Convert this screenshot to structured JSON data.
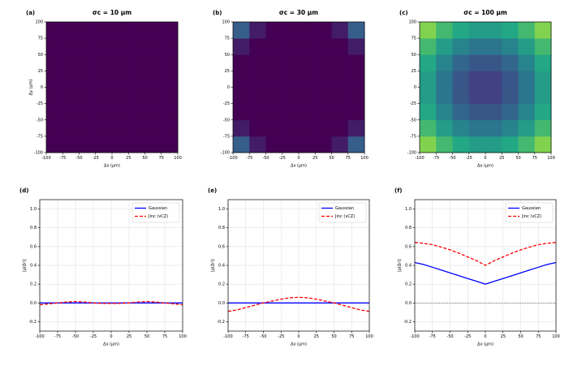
{
  "chart_data": [
    {
      "type": "heatmap",
      "panel_label": "(a)",
      "title": "σc = 10 μm",
      "xlabel": "Δx (μm)",
      "ylabel": "Δy (μm)",
      "xlim": [
        -100,
        100
      ],
      "ylim": [
        -100,
        100
      ],
      "xticks": [
        -100,
        -75,
        -50,
        -25,
        0,
        25,
        50,
        75,
        100
      ],
      "yticks": [
        -100,
        -75,
        -50,
        -25,
        0,
        25,
        50,
        75,
        100
      ],
      "colormap": "viridis",
      "clim": [
        0,
        1
      ],
      "x": [
        -87.5,
        -62.5,
        -37.5,
        -12.5,
        12.5,
        37.5,
        62.5,
        87.5
      ],
      "y": [
        -87.5,
        -62.5,
        -37.5,
        -12.5,
        12.5,
        37.5,
        62.5,
        87.5
      ],
      "z": [
        [
          0,
          0,
          0,
          0,
          0,
          0,
          0,
          0
        ],
        [
          0,
          0,
          0,
          0,
          0,
          0,
          0,
          0
        ],
        [
          0,
          0,
          0,
          0,
          0,
          0,
          0,
          0
        ],
        [
          0,
          0,
          0,
          0,
          0,
          0,
          0,
          0
        ],
        [
          0,
          0,
          0,
          0,
          0,
          0,
          0,
          0
        ],
        [
          0,
          0,
          0,
          0,
          0,
          0,
          0,
          0
        ],
        [
          0,
          0,
          0,
          0,
          0,
          0,
          0,
          0
        ],
        [
          0,
          0,
          0,
          0,
          0,
          0,
          0,
          0
        ]
      ]
    },
    {
      "type": "heatmap",
      "panel_label": "(b)",
      "title": "σc = 30 μm",
      "xlabel": "Δx (μm)",
      "xlim": [
        -100,
        100
      ],
      "ylim": [
        -100,
        100
      ],
      "xticks": [
        -100,
        -75,
        -50,
        -25,
        0,
        25,
        50,
        75,
        100
      ],
      "yticks": [
        -100,
        -75,
        -50,
        -25,
        0,
        25,
        50,
        75,
        100
      ],
      "colormap": "viridis",
      "clim": [
        0,
        1
      ],
      "x": [
        -87.5,
        -62.5,
        -37.5,
        -12.5,
        12.5,
        37.5,
        62.5,
        87.5
      ],
      "y": [
        -87.5,
        -62.5,
        -37.5,
        -12.5,
        12.5,
        37.5,
        62.5,
        87.5
      ],
      "z": [
        [
          0.3,
          0.08,
          0,
          0,
          0,
          0,
          0.08,
          0.3
        ],
        [
          0.08,
          0,
          0,
          0,
          0,
          0,
          0,
          0.08
        ],
        [
          0,
          0,
          0,
          0,
          0,
          0,
          0,
          0
        ],
        [
          0,
          0,
          0,
          0,
          0,
          0,
          0,
          0
        ],
        [
          0,
          0,
          0,
          0,
          0,
          0,
          0,
          0
        ],
        [
          0,
          0,
          0,
          0,
          0,
          0,
          0,
          0
        ],
        [
          0.08,
          0,
          0,
          0,
          0,
          0,
          0,
          0.08
        ],
        [
          0.3,
          0.08,
          0,
          0,
          0,
          0,
          0.08,
          0.3
        ]
      ]
    },
    {
      "type": "heatmap",
      "panel_label": "(c)",
      "title": "σc = 100 μm",
      "xlabel": "Δx (μm)",
      "xlim": [
        -100,
        100
      ],
      "ylim": [
        -100,
        100
      ],
      "xticks": [
        -100,
        -75,
        -50,
        -25,
        0,
        25,
        50,
        75,
        100
      ],
      "yticks": [
        -100,
        -75,
        -50,
        -25,
        0,
        25,
        50,
        75,
        100
      ],
      "colormap": "viridis",
      "clim": [
        0,
        1
      ],
      "x": [
        -87.5,
        -62.5,
        -37.5,
        -12.5,
        12.5,
        37.5,
        62.5,
        87.5
      ],
      "y": [
        -87.5,
        -62.5,
        -37.5,
        -12.5,
        12.5,
        37.5,
        62.5,
        87.5
      ],
      "z": [
        [
          0.81,
          0.68,
          0.6,
          0.55,
          0.55,
          0.6,
          0.68,
          0.81
        ],
        [
          0.68,
          0.55,
          0.45,
          0.39,
          0.39,
          0.45,
          0.55,
          0.68
        ],
        [
          0.6,
          0.45,
          0.33,
          0.27,
          0.27,
          0.33,
          0.45,
          0.6
        ],
        [
          0.55,
          0.39,
          0.27,
          0.19,
          0.19,
          0.27,
          0.39,
          0.55
        ],
        [
          0.55,
          0.39,
          0.27,
          0.19,
          0.19,
          0.27,
          0.39,
          0.55
        ],
        [
          0.6,
          0.45,
          0.33,
          0.27,
          0.27,
          0.33,
          0.45,
          0.6
        ],
        [
          0.68,
          0.55,
          0.45,
          0.39,
          0.39,
          0.45,
          0.55,
          0.68
        ],
        [
          0.81,
          0.68,
          0.6,
          0.55,
          0.55,
          0.6,
          0.68,
          0.81
        ]
      ]
    },
    {
      "type": "line",
      "panel_label": "(d)",
      "xlabel": "Δx (μm)",
      "ylabel": "|μ(Δr)|",
      "grid": true,
      "legend": "upper right",
      "hline": 0,
      "xlim": [
        -100,
        100
      ],
      "ylim": [
        -0.3,
        1.1
      ],
      "xticks": [
        -100,
        -75,
        -50,
        -25,
        0,
        25,
        50,
        75,
        100
      ],
      "yticks": [
        -0.2,
        {
          "value": 0,
          "label": "0.0"
        },
        0.2,
        0.4,
        0.6,
        0.8,
        {
          "value": 1,
          "label": "1.0"
        }
      ],
      "x": [
        -100,
        -87.5,
        -75,
        -62.5,
        -50,
        -37.5,
        -25,
        -12.5,
        0,
        12.5,
        25,
        37.5,
        50,
        62.5,
        75,
        87.5,
        100
      ],
      "series": [
        {
          "name": "Gaussian",
          "color": "#0000ff",
          "linestyle": "solid",
          "values": [
            0,
            0,
            0,
            0,
            0,
            0,
            0,
            0,
            0,
            0,
            0,
            0,
            0,
            0,
            0,
            0,
            0
          ]
        },
        {
          "name": "Jinc (vCZ)",
          "color": "#ff0000",
          "linestyle": "dashed",
          "values": [
            -0.02,
            -0.01,
            0,
            0.01,
            0.015,
            0.01,
            0,
            -0.005,
            -0.005,
            -0.005,
            0,
            0.01,
            0.015,
            0.01,
            0,
            -0.01,
            -0.02
          ]
        }
      ]
    },
    {
      "type": "line",
      "panel_label": "(e)",
      "xlabel": "Δx (μm)",
      "ylabel": "|μ(Δr)|",
      "grid": true,
      "legend": "upper right",
      "hline": 0,
      "xlim": [
        -100,
        100
      ],
      "ylim": [
        -0.3,
        1.1
      ],
      "xticks": [
        -100,
        -75,
        -50,
        -25,
        0,
        25,
        50,
        75,
        100
      ],
      "yticks": [
        -0.2,
        {
          "value": 0,
          "label": "0.0"
        },
        0.2,
        0.4,
        0.6,
        0.8,
        {
          "value": 1,
          "label": "1.0"
        }
      ],
      "x": [
        -100,
        -87.5,
        -75,
        -62.5,
        -50,
        -37.5,
        -25,
        -12.5,
        0,
        12.5,
        25,
        37.5,
        50,
        62.5,
        75,
        87.5,
        100
      ],
      "series": [
        {
          "name": "Gaussian",
          "color": "#0000ff",
          "linestyle": "solid",
          "values": [
            0,
            0,
            0,
            0,
            0,
            0,
            0,
            0,
            0,
            0,
            0,
            0,
            0,
            0,
            0,
            0,
            0
          ]
        },
        {
          "name": "Jinc (vCZ)",
          "color": "#ff0000",
          "linestyle": "dashed",
          "values": [
            -0.09,
            -0.075,
            -0.05,
            -0.025,
            0,
            0.02,
            0.04,
            0.055,
            0.06,
            0.055,
            0.04,
            0.02,
            0,
            -0.025,
            -0.05,
            -0.075,
            -0.09
          ]
        }
      ]
    },
    {
      "type": "line",
      "panel_label": "(f)",
      "xlabel": "Δx (μm)",
      "ylabel": "|μ(Δr)|",
      "grid": true,
      "legend": "upper right",
      "hline": 0,
      "xlim": [
        -100,
        100
      ],
      "ylim": [
        -0.3,
        1.1
      ],
      "xticks": [
        -100,
        -75,
        -50,
        -25,
        0,
        25,
        50,
        75,
        100
      ],
      "yticks": [
        -0.2,
        {
          "value": 0,
          "label": "0.0"
        },
        0.2,
        0.4,
        0.6,
        0.8,
        {
          "value": 1,
          "label": "1.0"
        }
      ],
      "x": [
        -100,
        -87.5,
        -75,
        -62.5,
        -50,
        -37.5,
        -25,
        -12.5,
        0,
        12.5,
        25,
        37.5,
        50,
        62.5,
        75,
        87.5,
        100
      ],
      "series": [
        {
          "name": "Gaussian",
          "color": "#0000ff",
          "linestyle": "solid",
          "values": [
            0.43,
            0.41,
            0.38,
            0.35,
            0.32,
            0.29,
            0.26,
            0.23,
            0.2,
            0.23,
            0.26,
            0.29,
            0.32,
            0.35,
            0.38,
            0.41,
            0.43
          ]
        },
        {
          "name": "Jinc (vCZ)",
          "color": "#ff0000",
          "linestyle": "dashed",
          "values": [
            0.645,
            0.635,
            0.62,
            0.595,
            0.565,
            0.53,
            0.49,
            0.45,
            0.4,
            0.45,
            0.49,
            0.53,
            0.565,
            0.595,
            0.62,
            0.635,
            0.645
          ]
        }
      ]
    }
  ]
}
